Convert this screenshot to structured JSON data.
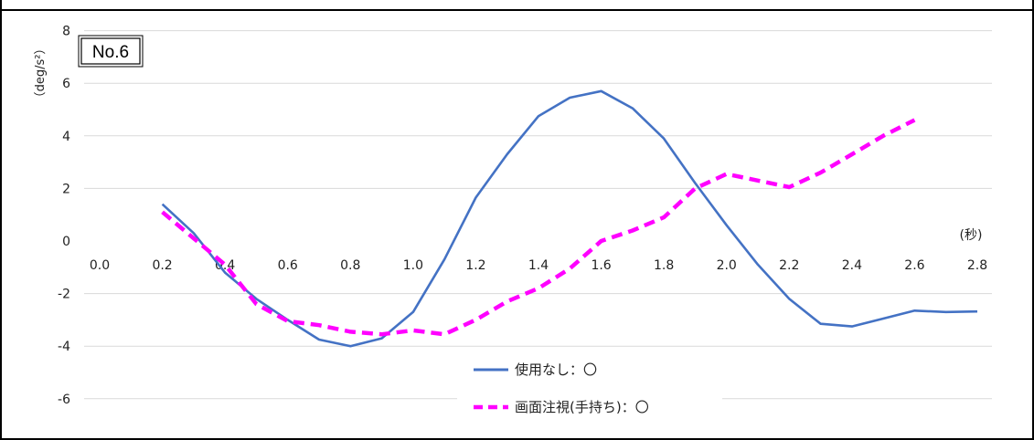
{
  "chart_data": {
    "type": "line",
    "badge": "No.6",
    "ylabel": "（deg/s²）",
    "xunit": "(秒)",
    "ylim": [
      -6,
      8
    ],
    "yticks": [
      -6,
      -4,
      -2,
      0,
      2,
      4,
      6,
      8
    ],
    "xlim": [
      0.0,
      2.8
    ],
    "xticks": [
      "0.0",
      "0.2",
      "0.4",
      "0.6",
      "0.8",
      "1.0",
      "1.2",
      "1.4",
      "1.6",
      "1.8",
      "2.0",
      "2.2",
      "2.4",
      "2.6",
      "2.8"
    ],
    "grid": true,
    "legend_position": "bottom-center",
    "series": [
      {
        "name": "使用なし：〇",
        "color": "#4472C4",
        "style": "solid",
        "x": [
          0.2,
          0.3,
          0.4,
          0.5,
          0.6,
          0.7,
          0.8,
          0.9,
          1.0,
          1.1,
          1.2,
          1.3,
          1.4,
          1.5,
          1.6,
          1.7,
          1.8,
          1.9,
          2.0,
          2.1,
          2.2,
          2.3,
          2.4,
          2.5,
          2.6,
          2.7,
          2.8
        ],
        "y": [
          1.4,
          0.3,
          -1.2,
          -2.2,
          -3.0,
          -3.75,
          -4.0,
          -3.7,
          -2.7,
          -0.7,
          1.65,
          3.3,
          4.75,
          5.45,
          5.7,
          5.05,
          3.9,
          2.2,
          0.6,
          -0.9,
          -2.2,
          -3.15,
          -3.25,
          -2.95,
          -2.65,
          -2.7,
          -2.68
        ]
      },
      {
        "name": "画面注視(手持ち)：〇",
        "color": "#FF00FF",
        "style": "dashed",
        "x": [
          0.2,
          0.3,
          0.4,
          0.5,
          0.6,
          0.7,
          0.8,
          0.9,
          1.0,
          1.1,
          1.2,
          1.3,
          1.4,
          1.5,
          1.6,
          1.7,
          1.8,
          1.9,
          2.0,
          2.1,
          2.2,
          2.3,
          2.4,
          2.5,
          2.6
        ],
        "y": [
          1.1,
          0.1,
          -0.9,
          -2.4,
          -3.05,
          -3.2,
          -3.45,
          -3.55,
          -3.4,
          -3.55,
          -3.0,
          -2.3,
          -1.8,
          -1.05,
          0.0,
          0.4,
          0.9,
          2.0,
          2.55,
          2.3,
          2.05,
          2.6,
          3.3,
          4.0,
          4.6
        ]
      }
    ]
  }
}
